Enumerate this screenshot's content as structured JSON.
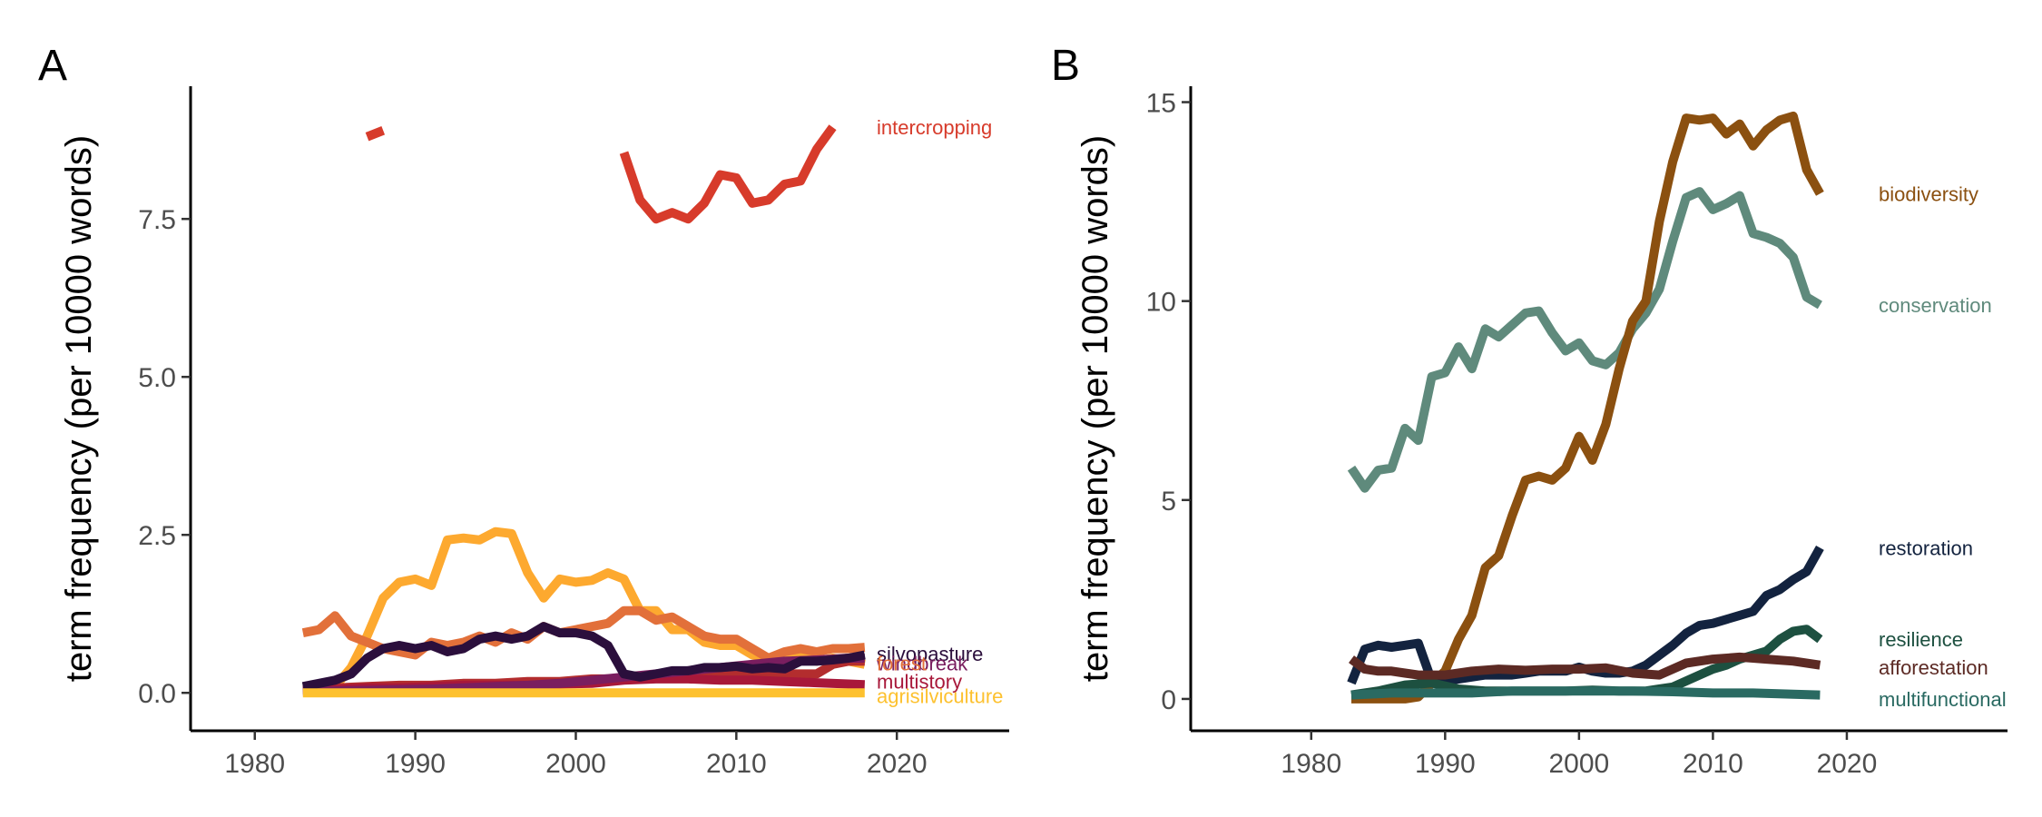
{
  "chart_data": [
    {
      "panel": "A",
      "type": "line",
      "xlabel": "",
      "ylabel": "term frequency (per 10000 words)",
      "xlim": [
        1976,
        2027
      ],
      "ylim": [
        -0.6,
        9.6
      ],
      "xticks": [
        1980,
        1990,
        2000,
        2010,
        2020
      ],
      "yticks": [
        0,
        2.5,
        5,
        7.5
      ],
      "ytick_labels": [
        "0.0",
        "2.5",
        "5.0",
        "7.5"
      ],
      "series": [
        {
          "name": "intercropping",
          "color": "#D73B2B",
          "x": [
            1987,
            1988,
            null,
            2003,
            2004,
            2005,
            2006,
            2007,
            2008,
            2009,
            2010,
            2011,
            2012,
            2013,
            2014,
            2015,
            2016
          ],
          "y": [
            8.8,
            8.9,
            null,
            8.55,
            7.8,
            7.5,
            7.6,
            7.5,
            7.75,
            8.2,
            8.15,
            7.75,
            7.8,
            8.05,
            8.1,
            8.6,
            8.95
          ]
        },
        {
          "name": "",
          "color": "#FDA92F",
          "x": [
            1985,
            1986,
            1987,
            1988,
            1989,
            1990,
            1991,
            1992,
            1993,
            1994,
            1995,
            1996,
            1997,
            1998,
            1999,
            2000,
            2001,
            2002,
            2003,
            2004,
            2005,
            2006,
            2007,
            2008,
            2009,
            2010,
            2011,
            2012,
            2013,
            2014,
            2015,
            2016,
            2017,
            2018
          ],
          "y": [
            0.1,
            0.4,
            0.9,
            1.5,
            1.75,
            1.8,
            1.7,
            2.42,
            2.45,
            2.42,
            2.55,
            2.52,
            1.9,
            1.5,
            1.8,
            1.75,
            1.78,
            1.9,
            1.8,
            1.3,
            1.3,
            1.0,
            1.0,
            0.8,
            0.75,
            0.75,
            0.6,
            0.55,
            0.55,
            0.6,
            0.5,
            0.55,
            0.5,
            0.45
          ]
        },
        {
          "name": "",
          "color": "#E2703A",
          "x": [
            1983,
            1984,
            1985,
            1986,
            1987,
            1988,
            1989,
            1990,
            1991,
            1992,
            1993,
            1994,
            1995,
            1996,
            1997,
            1998,
            1999,
            2000,
            2001,
            2002,
            2003,
            2004,
            2005,
            2006,
            2007,
            2008,
            2009,
            2010,
            2011,
            2012,
            2013,
            2014,
            2015,
            2016,
            2017,
            2018
          ],
          "y": [
            0.95,
            1.0,
            1.22,
            0.9,
            0.8,
            0.7,
            0.65,
            0.6,
            0.8,
            0.75,
            0.8,
            0.9,
            0.8,
            0.95,
            0.85,
            1.05,
            0.95,
            1.0,
            1.05,
            1.1,
            1.3,
            1.3,
            1.15,
            1.2,
            1.05,
            0.9,
            0.85,
            0.85,
            0.7,
            0.55,
            0.65,
            0.7,
            0.65,
            0.7,
            0.7,
            0.72
          ]
        },
        {
          "name": "windbreak",
          "color": "#B32D2E",
          "x": [
            1983,
            1985,
            1987,
            1989,
            1991,
            1993,
            1995,
            1997,
            1999,
            2001,
            2003,
            2005,
            2007,
            2009,
            2011,
            2013,
            2015,
            2016,
            2017,
            2018
          ],
          "y": [
            0.05,
            0.08,
            0.1,
            0.12,
            0.12,
            0.15,
            0.15,
            0.18,
            0.18,
            0.22,
            0.22,
            0.25,
            0.25,
            0.28,
            0.28,
            0.3,
            0.3,
            0.45,
            0.5,
            0.5
          ]
        },
        {
          "name": "multistory",
          "color": "#A8183A",
          "x": [
            1983,
            1985,
            1987,
            1989,
            1991,
            1993,
            1995,
            1997,
            1999,
            2001,
            2003,
            2005,
            2007,
            2009,
            2011,
            2013,
            2015,
            2017,
            2018
          ],
          "y": [
            0.05,
            0.05,
            0.08,
            0.08,
            0.1,
            0.12,
            0.12,
            0.12,
            0.14,
            0.15,
            0.2,
            0.22,
            0.22,
            0.2,
            0.2,
            0.18,
            0.16,
            0.14,
            0.13
          ]
        },
        {
          "name": "",
          "color": "#7A1E5F",
          "x": [
            1983,
            1985,
            1987,
            1989,
            1991,
            1993,
            1995,
            1997,
            1999,
            2001,
            2003,
            2005,
            2007,
            2009,
            2011,
            2013,
            2015,
            2017,
            2018
          ],
          "y": [
            0.02,
            0.03,
            0.04,
            0.05,
            0.06,
            0.08,
            0.1,
            0.12,
            0.15,
            0.2,
            0.25,
            0.3,
            0.35,
            0.4,
            0.45,
            0.5,
            0.52,
            0.55,
            0.55
          ]
        },
        {
          "name": "silvopasture",
          "color": "#2B0F3C",
          "x": [
            1983,
            1984,
            1985,
            1986,
            1987,
            1988,
            1989,
            1990,
            1991,
            1992,
            1993,
            1994,
            1995,
            1996,
            1997,
            1998,
            1999,
            2000,
            2001,
            2002,
            2003,
            2004,
            2005,
            2006,
            2007,
            2008,
            2009,
            2010,
            2011,
            2012,
            2013,
            2014,
            2015,
            2016,
            2017,
            2018
          ],
          "y": [
            0.1,
            0.15,
            0.2,
            0.3,
            0.55,
            0.7,
            0.75,
            0.7,
            0.75,
            0.65,
            0.7,
            0.85,
            0.9,
            0.85,
            0.9,
            1.05,
            0.95,
            0.95,
            0.9,
            0.75,
            0.3,
            0.25,
            0.3,
            0.35,
            0.35,
            0.4,
            0.4,
            0.42,
            0.38,
            0.4,
            0.38,
            0.5,
            0.5,
            0.52,
            0.55,
            0.6
          ]
        },
        {
          "name": "agrisilviculture",
          "color": "#FDC12F",
          "x": [
            1983,
            1990,
            2000,
            2005,
            2010,
            2015,
            2018
          ],
          "y": [
            0.0,
            0.0,
            0.0,
            0.0,
            0.0,
            0.0,
            0.0
          ]
        }
      ],
      "labels": [
        {
          "text": "intercropping",
          "color": "#D73B2B",
          "y": 8.95
        },
        {
          "text": "silvopasture",
          "color": "#2B0F3C",
          "y": 0.62
        },
        {
          "text": "windbreak",
          "color": "#7A1E5F",
          "y": 0.47
        },
        {
          "text": "forest",
          "color": "#E2703A",
          "y": 0.47
        },
        {
          "text": "multistory",
          "color": "#A8183A",
          "y": 0.18
        },
        {
          "text": "agrisilviculture",
          "color": "#FDC12F",
          "y": -0.05
        }
      ]
    },
    {
      "panel": "B",
      "type": "line",
      "xlabel": "",
      "ylabel": "term frequency (per 10000 words)",
      "xlim": [
        1971,
        2032
      ],
      "ylim": [
        -0.8,
        15.4
      ],
      "xticks": [
        1980,
        1990,
        2000,
        2010,
        2020
      ],
      "yticks": [
        0,
        5,
        10,
        15
      ],
      "ytick_labels": [
        "0",
        "5",
        "10",
        "15"
      ],
      "series": [
        {
          "name": "conservation",
          "color": "#5F8A7C",
          "x": [
            1983,
            1984,
            1985,
            1986,
            1987,
            1988,
            1989,
            1990,
            1991,
            1992,
            1993,
            1994,
            1995,
            1996,
            1997,
            1998,
            1999,
            2000,
            2001,
            2002,
            2003,
            2004,
            2005,
            2006,
            2007,
            2008,
            2009,
            2010,
            2011,
            2012,
            2013,
            2014,
            2015,
            2016,
            2017,
            2018
          ],
          "y": [
            5.8,
            5.3,
            5.75,
            5.8,
            6.8,
            6.5,
            8.1,
            8.2,
            8.85,
            8.3,
            9.3,
            9.1,
            9.4,
            9.7,
            9.75,
            9.2,
            8.75,
            8.95,
            8.5,
            8.4,
            8.7,
            9.3,
            9.7,
            10.3,
            11.5,
            12.6,
            12.75,
            12.3,
            12.45,
            12.65,
            11.7,
            11.6,
            11.45,
            11.1,
            10.1,
            9.9
          ]
        },
        {
          "name": "biodiversity",
          "color": "#8B5010",
          "x": [
            1983,
            1984,
            1985,
            1986,
            1987,
            1988,
            1989,
            1990,
            1991,
            1992,
            1993,
            1994,
            1995,
            1996,
            1997,
            1998,
            1999,
            2000,
            2001,
            2002,
            2003,
            2004,
            2005,
            2006,
            2007,
            2008,
            2009,
            2010,
            2011,
            2012,
            2013,
            2014,
            2015,
            2016,
            2017,
            2018
          ],
          "y": [
            0.0,
            0.0,
            0.0,
            0.0,
            0.0,
            0.05,
            0.4,
            0.7,
            1.5,
            2.1,
            3.3,
            3.6,
            4.6,
            5.5,
            5.6,
            5.5,
            5.8,
            6.6,
            6.0,
            6.9,
            8.3,
            9.5,
            10.0,
            12.0,
            13.5,
            14.6,
            14.55,
            14.6,
            14.2,
            14.45,
            13.9,
            14.3,
            14.55,
            14.65,
            13.3,
            12.7
          ]
        },
        {
          "name": "restoration",
          "color": "#13233F",
          "x": [
            1983,
            1984,
            1985,
            1986,
            1987,
            1988,
            1989,
            1990,
            1991,
            1992,
            1993,
            1994,
            1995,
            1996,
            1997,
            1998,
            1999,
            2000,
            2001,
            2002,
            2003,
            2004,
            2005,
            2006,
            2007,
            2008,
            2009,
            2010,
            2011,
            2012,
            2013,
            2014,
            2015,
            2016,
            2017,
            2018
          ],
          "y": [
            0.4,
            1.25,
            1.35,
            1.3,
            1.35,
            1.4,
            0.45,
            0.45,
            0.5,
            0.55,
            0.6,
            0.6,
            0.6,
            0.65,
            0.7,
            0.7,
            0.7,
            0.8,
            0.7,
            0.65,
            0.65,
            0.7,
            0.85,
            1.1,
            1.35,
            1.65,
            1.85,
            1.9,
            2.0,
            2.1,
            2.2,
            2.6,
            2.75,
            3.0,
            3.2,
            3.8
          ]
        },
        {
          "name": "resilience",
          "color": "#1D5040",
          "x": [
            1983,
            1985,
            1987,
            1989,
            1991,
            1993,
            1995,
            1997,
            1999,
            2001,
            2003,
            2005,
            2006,
            2007,
            2008,
            2009,
            2010,
            2011,
            2012,
            2013,
            2014,
            2015,
            2016,
            2017,
            2018
          ],
          "y": [
            0.1,
            0.2,
            0.35,
            0.4,
            0.25,
            0.2,
            0.2,
            0.2,
            0.2,
            0.22,
            0.2,
            0.2,
            0.25,
            0.3,
            0.45,
            0.6,
            0.75,
            0.85,
            1.0,
            1.1,
            1.2,
            1.5,
            1.7,
            1.75,
            1.5
          ]
        },
        {
          "name": "afforestation",
          "color": "#5C2A24",
          "x": [
            1983,
            1984,
            1985,
            1986,
            1987,
            1988,
            1989,
            1990,
            1992,
            1994,
            1996,
            1998,
            2000,
            2002,
            2004,
            2006,
            2008,
            2010,
            2012,
            2014,
            2016,
            2018
          ],
          "y": [
            1.0,
            0.75,
            0.7,
            0.7,
            0.65,
            0.6,
            0.6,
            0.6,
            0.7,
            0.75,
            0.72,
            0.75,
            0.75,
            0.78,
            0.65,
            0.6,
            0.9,
            1.0,
            1.05,
            1.0,
            0.95,
            0.85
          ]
        },
        {
          "name": "multifunctional",
          "color": "#2A6A62",
          "x": [
            1983,
            1986,
            1989,
            1992,
            1995,
            1998,
            2001,
            2004,
            2007,
            2010,
            2013,
            2016,
            2018
          ],
          "y": [
            0.1,
            0.15,
            0.15,
            0.15,
            0.2,
            0.2,
            0.2,
            0.2,
            0.18,
            0.15,
            0.15,
            0.12,
            0.1
          ]
        }
      ],
      "labels": [
        {
          "text": "biodiversity",
          "color": "#8B5010",
          "y": 12.7
        },
        {
          "text": "conservation",
          "color": "#5F8A7C",
          "y": 9.9
        },
        {
          "text": "restoration",
          "color": "#13233F",
          "y": 3.8
        },
        {
          "text": "resilience",
          "color": "#1D5040",
          "y": 1.5
        },
        {
          "text": "afforestation",
          "color": "#5C2A24",
          "y": 0.8
        },
        {
          "text": "multifunctional",
          "color": "#2A6A62",
          "y": 0.0
        }
      ]
    }
  ]
}
